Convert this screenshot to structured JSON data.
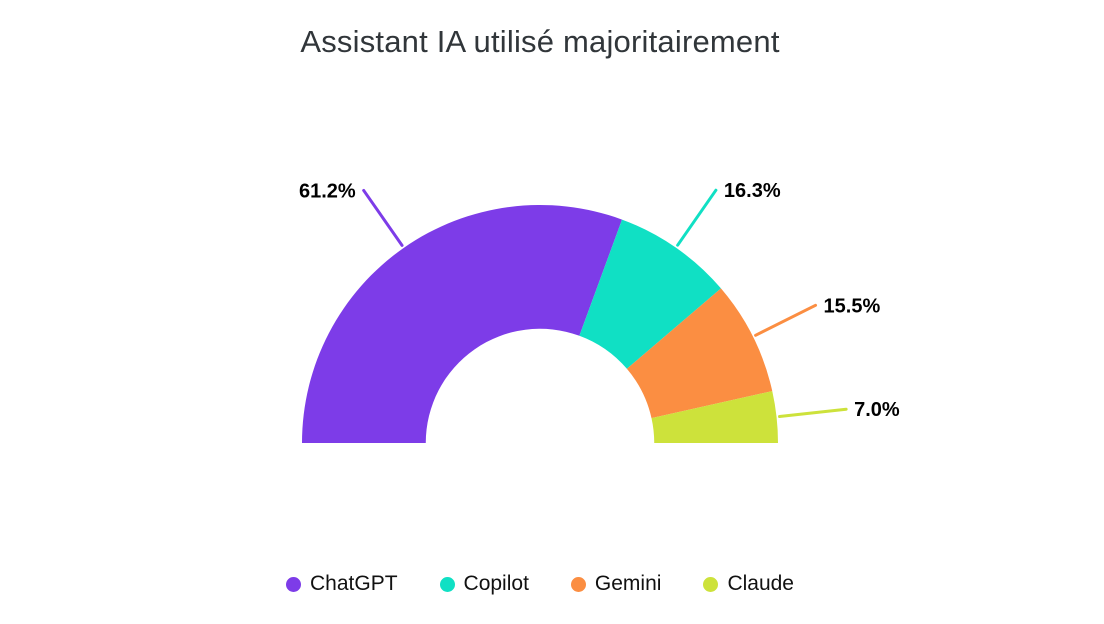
{
  "chart_data": {
    "type": "pie",
    "subtype": "half-donut",
    "title": "Assistant IA utilisé majoritairement",
    "categories": [
      "ChatGPT",
      "Copilot",
      "Gemini",
      "Claude"
    ],
    "values": [
      61.2,
      16.3,
      15.5,
      7.0
    ],
    "value_labels": [
      "61.2%",
      "16.3%",
      "15.5%",
      "7.0%"
    ],
    "colors": [
      "#7D3CE8",
      "#10E0C4",
      "#FB8E42",
      "#CDE23B"
    ],
    "start_angle": 180,
    "end_angle": 0,
    "inner_radius_ratio": 0.48,
    "legend_position": "bottom",
    "label_color": "#000000",
    "title_color": "#31363A",
    "background_color": "#FFFFFF"
  }
}
